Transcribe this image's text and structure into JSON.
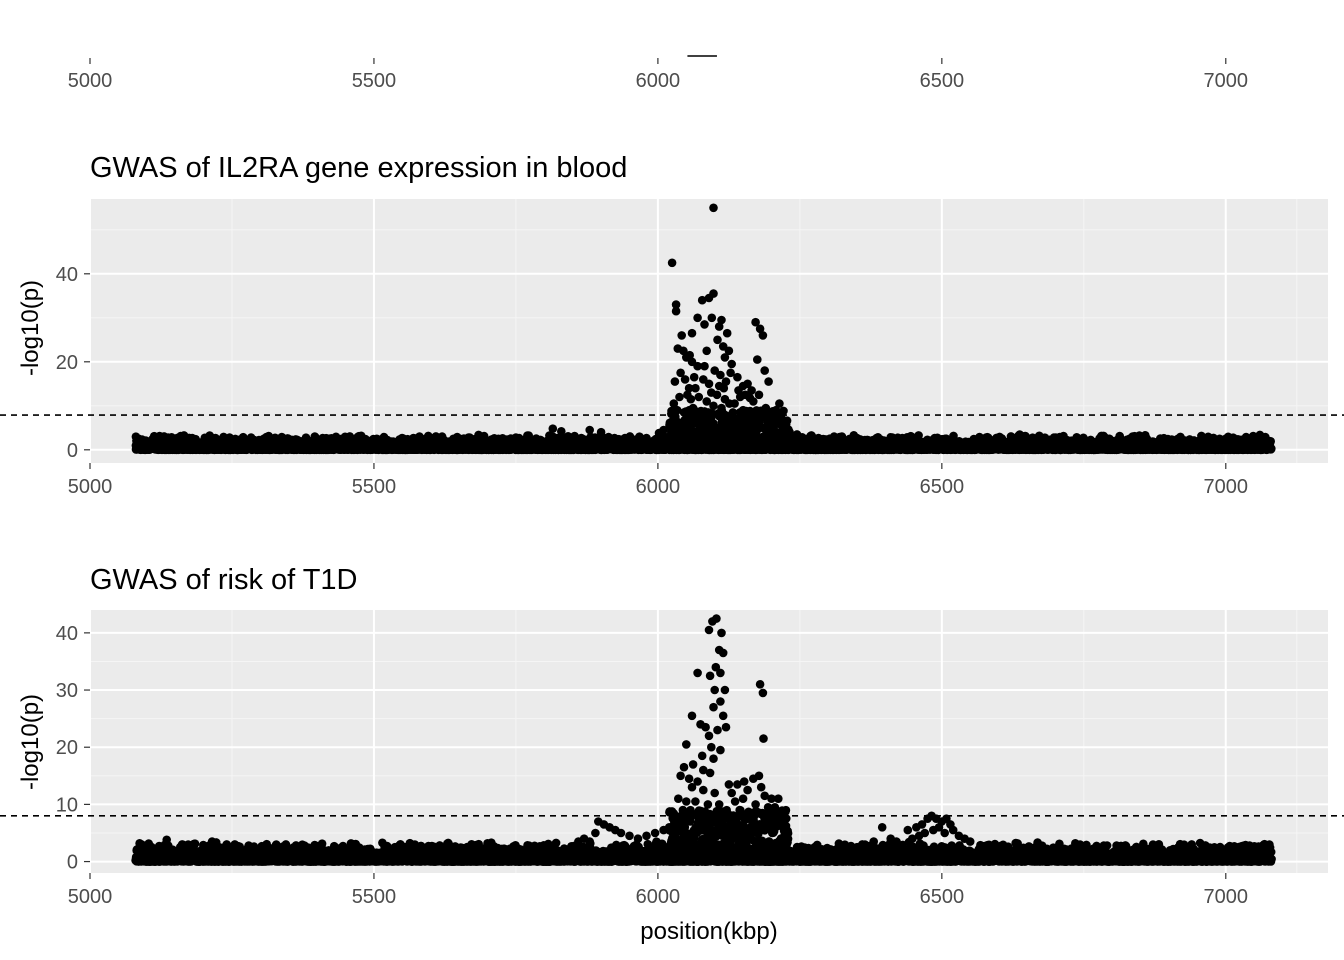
{
  "chart_data": [
    {
      "type": "genes",
      "title": "",
      "x_ticks": [
        "5000",
        "5500",
        "6000",
        "6500",
        "7000"
      ],
      "xlim": [
        5000,
        7180
      ],
      "genes": [
        {
          "start": 6052,
          "end": 6104
        }
      ]
    },
    {
      "type": "scatter",
      "title": "GWAS of IL2RA gene expression in blood",
      "xlabel": "",
      "ylabel": "-log10(p)",
      "xlim": [
        5000,
        7180
      ],
      "ylim": [
        -3,
        57
      ],
      "x_ticks": [
        "5000",
        "5500",
        "6000",
        "6500",
        "7000"
      ],
      "y_ticks": [
        "0",
        "20",
        "40"
      ],
      "threshold": 7.9,
      "grid": true,
      "background_points": {
        "x_range": [
          5080,
          7080
        ],
        "baseline_max": 3.5
      },
      "peak_points": [
        [
          6098,
          55.0
        ],
        [
          6025,
          42.5
        ],
        [
          6032,
          33.0
        ],
        [
          6078,
          34.0
        ],
        [
          6090,
          34.5
        ],
        [
          6098,
          35.5
        ],
        [
          6032,
          31.5
        ],
        [
          6070,
          30.0
        ],
        [
          6082,
          28.5
        ],
        [
          6112,
          29.5
        ],
        [
          6108,
          28.0
        ],
        [
          6122,
          26.5
        ],
        [
          6060,
          26.5
        ],
        [
          6095,
          30.0
        ],
        [
          6105,
          25.0
        ],
        [
          6115,
          23.5
        ],
        [
          6125,
          22.5
        ],
        [
          6035,
          23.0
        ],
        [
          6045,
          22.5
        ],
        [
          6050,
          21.0
        ],
        [
          6060,
          20.0
        ],
        [
          6070,
          19.0
        ],
        [
          6040,
          17.5
        ],
        [
          6048,
          16.0
        ],
        [
          6030,
          15.5
        ],
        [
          6055,
          14.0
        ],
        [
          6064,
          16.5
        ],
        [
          6080,
          16.0
        ],
        [
          6090,
          15.0
        ],
        [
          6100,
          18.0
        ],
        [
          6110,
          17.0
        ],
        [
          6120,
          15.5
        ],
        [
          6130,
          19.5
        ],
        [
          6140,
          16.5
        ],
        [
          6150,
          14.5
        ],
        [
          6158,
          15.0
        ],
        [
          6165,
          13.5
        ],
        [
          6172,
          29.0
        ],
        [
          6180,
          27.5
        ],
        [
          6185,
          26.0
        ],
        [
          6175,
          20.5
        ],
        [
          6188,
          18.0
        ],
        [
          6195,
          15.5
        ],
        [
          6178,
          12.5
        ],
        [
          6168,
          11.0
        ],
        [
          6145,
          12.0
        ],
        [
          6135,
          10.5
        ],
        [
          6038,
          12.0
        ],
        [
          6028,
          10.5
        ],
        [
          6058,
          11.5
        ],
        [
          6072,
          12.0
        ],
        [
          6086,
          11.0
        ],
        [
          6098,
          10.0
        ],
        [
          6112,
          9.5
        ],
        [
          6126,
          10.5
        ],
        [
          6150,
          9.0
        ],
        [
          6190,
          9.5
        ],
        [
          6200,
          8.5
        ],
        [
          6208,
          9.0
        ],
        [
          6214,
          10.5
        ],
        [
          6034,
          9.0
        ],
        [
          6046,
          8.5
        ],
        [
          6062,
          9.5
        ],
        [
          6076,
          8.8
        ],
        [
          6090,
          8.2
        ],
        [
          6104,
          12.5
        ],
        [
          6118,
          11.5
        ],
        [
          6132,
          8.5
        ],
        [
          6160,
          8.5
        ],
        [
          6180,
          8.0
        ],
        [
          6108,
          14.5
        ],
        [
          6094,
          13.0
        ],
        [
          6052,
          12.5
        ],
        [
          6066,
          14.0
        ],
        [
          6142,
          13.5
        ],
        [
          6154,
          12.5
        ],
        [
          6162,
          11.8
        ],
        [
          6042,
          26.0
        ],
        [
          6056,
          21.5
        ],
        [
          6086,
          22.5
        ],
        [
          6118,
          21.0
        ],
        [
          6128,
          17.5
        ],
        [
          6082,
          19.0
        ],
        [
          6116,
          14.0
        ],
        [
          5815,
          4.8
        ],
        [
          5830,
          4.2
        ],
        [
          5880,
          4.5
        ],
        [
          5900,
          4.0
        ],
        [
          6010,
          4.5
        ],
        [
          6002,
          3.8
        ],
        [
          6220,
          5.0
        ],
        [
          6232,
          4.0
        ],
        [
          6245,
          3.5
        ],
        [
          5640,
          2.5
        ],
        [
          5750,
          2.8
        ],
        [
          5620,
          3.0
        ]
      ]
    },
    {
      "type": "scatter",
      "title": "GWAS of risk of T1D",
      "xlabel": "position(kbp)",
      "ylabel": "-log10(p)",
      "xlim": [
        5000,
        7180
      ],
      "ylim": [
        -2,
        44
      ],
      "x_ticks": [
        "5000",
        "5500",
        "6000",
        "6500",
        "7000"
      ],
      "y_ticks": [
        "0",
        "10",
        "20",
        "30",
        "40"
      ],
      "threshold": 8.0,
      "grid": true,
      "background_points": {
        "x_range": [
          5080,
          7080
        ],
        "baseline_max": 3.5
      },
      "peak_points": [
        [
          6096,
          42.0
        ],
        [
          6103,
          42.5
        ],
        [
          6090,
          40.5
        ],
        [
          6112,
          40.0
        ],
        [
          6108,
          37.0
        ],
        [
          6115,
          36.5
        ],
        [
          6102,
          34.0
        ],
        [
          6110,
          33.0
        ],
        [
          6092,
          32.5
        ],
        [
          6070,
          33.0
        ],
        [
          6118,
          30.0
        ],
        [
          6100,
          30.0
        ],
        [
          6180,
          31.0
        ],
        [
          6185,
          29.5
        ],
        [
          6110,
          28.0
        ],
        [
          6098,
          27.0
        ],
        [
          6115,
          25.5
        ],
        [
          6060,
          25.5
        ],
        [
          6075,
          24.0
        ],
        [
          6105,
          23.0
        ],
        [
          6120,
          23.5
        ],
        [
          6084,
          23.5
        ],
        [
          6090,
          22.0
        ],
        [
          6186,
          21.5
        ],
        [
          6050,
          20.5
        ],
        [
          6094,
          20.0
        ],
        [
          6110,
          19.5
        ],
        [
          6078,
          18.5
        ],
        [
          6098,
          18.0
        ],
        [
          6062,
          17.0
        ],
        [
          6046,
          16.5
        ],
        [
          6080,
          16.0
        ],
        [
          6092,
          15.5
        ],
        [
          6040,
          15.0
        ],
        [
          6055,
          14.5
        ],
        [
          6070,
          14.0
        ],
        [
          6125,
          13.5
        ],
        [
          6140,
          13.5
        ],
        [
          6152,
          14.0
        ],
        [
          6168,
          14.5
        ],
        [
          6178,
          15.0
        ],
        [
          6182,
          13.0
        ],
        [
          6060,
          13.0
        ],
        [
          6080,
          12.5
        ],
        [
          6100,
          12.0
        ],
        [
          6130,
          12.0
        ],
        [
          6158,
          12.5
        ],
        [
          6188,
          11.5
        ],
        [
          6200,
          11.0
        ],
        [
          6212,
          11.0
        ],
        [
          6036,
          11.0
        ],
        [
          6050,
          10.5
        ],
        [
          6066,
          10.5
        ],
        [
          6088,
          10.0
        ],
        [
          6108,
          10.0
        ],
        [
          6136,
          10.5
        ],
        [
          6150,
          11.0
        ],
        [
          6172,
          10.0
        ],
        [
          6194,
          9.5
        ],
        [
          6206,
          9.5
        ],
        [
          6044,
          9.0
        ],
        [
          6072,
          8.8
        ],
        [
          6116,
          8.5
        ],
        [
          6144,
          9.0
        ],
        [
          6166,
          8.5
        ],
        [
          6184,
          8.5
        ],
        [
          6030,
          8.0
        ],
        [
          6056,
          7.8
        ],
        [
          6096,
          7.5
        ],
        [
          6128,
          7.0
        ],
        [
          6160,
          7.5
        ],
        [
          6198,
          7.0
        ],
        [
          5895,
          7.0
        ],
        [
          5905,
          6.5
        ],
        [
          5915,
          6.0
        ],
        [
          5925,
          5.5
        ],
        [
          5890,
          5.0
        ],
        [
          5935,
          5.0
        ],
        [
          5950,
          4.5
        ],
        [
          5965,
          4.0
        ],
        [
          5980,
          4.5
        ],
        [
          5995,
          5.0
        ],
        [
          6010,
          5.5
        ],
        [
          6020,
          6.0
        ],
        [
          5870,
          4.0
        ],
        [
          5880,
          3.5
        ],
        [
          6395,
          6.0
        ],
        [
          6440,
          5.5
        ],
        [
          6455,
          6.0
        ],
        [
          6465,
          6.5
        ],
        [
          6475,
          7.5
        ],
        [
          6482,
          8.0
        ],
        [
          6490,
          7.5
        ],
        [
          6500,
          7.0
        ],
        [
          6508,
          7.5
        ],
        [
          6515,
          6.5
        ],
        [
          6470,
          5.0
        ],
        [
          6485,
          5.5
        ],
        [
          6495,
          6.0
        ],
        [
          6505,
          5.0
        ],
        [
          6520,
          5.5
        ],
        [
          6530,
          4.5
        ],
        [
          6460,
          4.5
        ],
        [
          6448,
          4.0
        ],
        [
          6410,
          4.0
        ],
        [
          6420,
          3.5
        ],
        [
          6540,
          4.0
        ],
        [
          6550,
          3.5
        ],
        [
          6380,
          3.5
        ],
        [
          6360,
          3.0
        ],
        [
          5135,
          3.8
        ],
        [
          5215,
          3.5
        ],
        [
          5255,
          3.0
        ],
        [
          5345,
          3.0
        ],
        [
          5700,
          3.2
        ],
        [
          5860,
          3.5
        ],
        [
          6940,
          3.0
        ],
        [
          6980,
          2.5
        ]
      ]
    }
  ]
}
